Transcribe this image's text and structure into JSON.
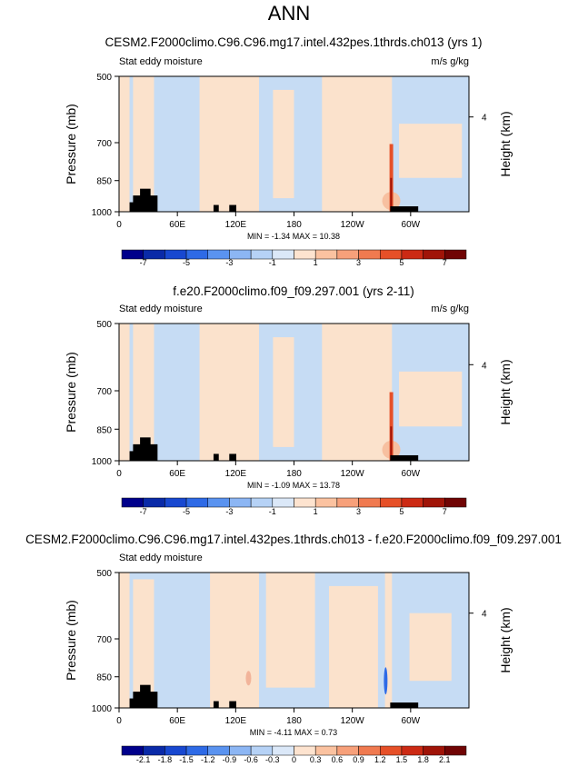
{
  "page_title": "ANN",
  "colors": {
    "blue_light": "#c6dcf4",
    "orange_light": "#fbe2cc",
    "land": "#000000",
    "cmap_abs": [
      "#00008b",
      "#0a2aa8",
      "#1848d0",
      "#2e6ae6",
      "#5a93f0",
      "#8cb6f4",
      "#b6d2f6",
      "#dbe8f8",
      "#fde3cf",
      "#fbc2a0",
      "#f7a07a",
      "#f07a50",
      "#e65028",
      "#cc2a14",
      "#a01408",
      "#700404"
    ],
    "cmap_diff": [
      "#00008b",
      "#0a2aa8",
      "#1848d0",
      "#2e6ae6",
      "#5a93f0",
      "#8cb6f4",
      "#b6d2f6",
      "#dbe8f8",
      "#fde3cf",
      "#fbc2a0",
      "#f7a07a",
      "#f07a50",
      "#e65028",
      "#cc2a14",
      "#a01408",
      "#700404"
    ]
  },
  "chart_data": [
    {
      "type": "heatmap",
      "title": "CESM2.F2000climo.C96.C96.mg17.intel.432pes.1thrds.ch013 (yrs 1)",
      "left_label": "Stat eddy moisture",
      "right_label": "m/s g/kg",
      "ylabel": "Pressure (mb)",
      "ylabel_right": "Height (km)",
      "yticks": [
        "500",
        "700",
        "850",
        "1000"
      ],
      "yticks_right": [
        "4"
      ],
      "xticks": [
        "0",
        "60E",
        "120E",
        "180",
        "120W",
        "60W"
      ],
      "stats": "MIN =  -1.34  MAX =  10.38",
      "colorbar_labels": [
        "-7",
        "-5",
        "-3",
        "-1",
        "1",
        "3",
        "5",
        "7"
      ],
      "colormap": "abs"
    },
    {
      "type": "heatmap",
      "title": "f.e20.F2000climo.f09_f09.297.001 (yrs 2-11)",
      "left_label": "Stat eddy moisture",
      "right_label": "m/s g/kg",
      "ylabel": "Pressure (mb)",
      "ylabel_right": "Height (km)",
      "yticks": [
        "500",
        "700",
        "850",
        "1000"
      ],
      "yticks_right": [
        "4"
      ],
      "xticks": [
        "0",
        "60E",
        "120E",
        "180",
        "120W",
        "60W"
      ],
      "stats": "MIN =  -1.09  MAX =  13.78",
      "colorbar_labels": [
        "-7",
        "-5",
        "-3",
        "-1",
        "1",
        "3",
        "5",
        "7"
      ],
      "colormap": "abs"
    },
    {
      "type": "heatmap",
      "title": "CESM2.F2000climo.C96.C96.mg17.intel.432pes.1thrds.ch013 - f.e20.F2000climo.f09_f09.297.001",
      "left_label": "Stat eddy moisture",
      "right_label": "",
      "ylabel": "Pressure (mb)",
      "ylabel_right": "Height (km)",
      "yticks": [
        "500",
        "700",
        "850",
        "1000"
      ],
      "yticks_right": [
        "4"
      ],
      "xticks": [
        "0",
        "60E",
        "120E",
        "180",
        "120W",
        "60W"
      ],
      "stats": "MIN =  -4.11  MAX =   0.73",
      "colorbar_labels": [
        "-2.1",
        "-1.8",
        "-1.5",
        "-1.2",
        "-0.9",
        "-0.6",
        "-0.3",
        "0",
        "0.3",
        "0.6",
        "0.9",
        "1.2",
        "1.5",
        "1.8",
        "2.1"
      ],
      "colormap": "diff"
    }
  ]
}
